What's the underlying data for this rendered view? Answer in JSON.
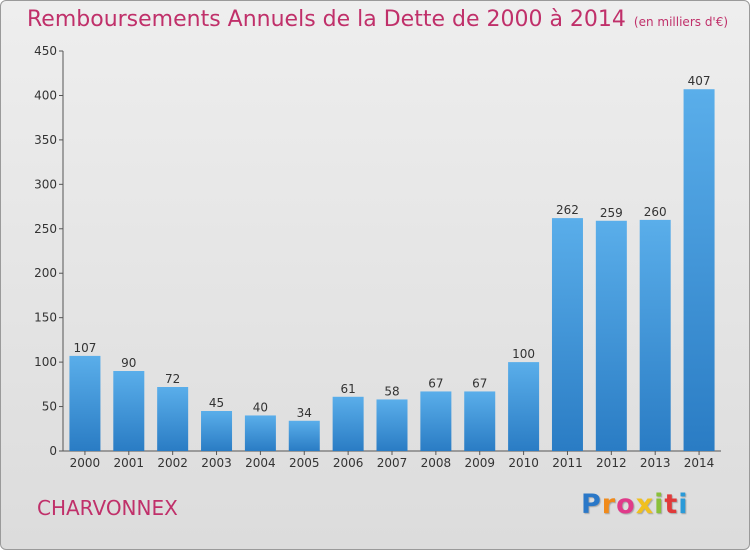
{
  "chart_data": {
    "type": "bar",
    "title": "Remboursements Annuels de la Dette de 2000 à 2014",
    "unit_note": "(en milliers d'€)",
    "categories": [
      "2000",
      "2001",
      "2002",
      "2003",
      "2004",
      "2005",
      "2006",
      "2007",
      "2008",
      "2009",
      "2010",
      "2011",
      "2012",
      "2013",
      "2014"
    ],
    "values": [
      107,
      90,
      72,
      45,
      40,
      34,
      61,
      58,
      67,
      67,
      100,
      262,
      259,
      260,
      407
    ],
    "y_ticks": [
      0,
      50,
      100,
      150,
      200,
      250,
      300,
      350,
      400,
      450
    ],
    "ylim": [
      0,
      450
    ],
    "xlabel": "",
    "ylabel": "",
    "grid": false,
    "bar_color": "#3a8fd6"
  },
  "footer": {
    "commune": "CHARVONNEX",
    "logo_letters": [
      "P",
      "r",
      "o",
      "x",
      "i",
      "t",
      "i"
    ],
    "logo_colors": [
      "#2a78c8",
      "#f08a1a",
      "#e03a8a",
      "#f0c020",
      "#8ac03a",
      "#e03a3a",
      "#2a9ad8"
    ]
  }
}
